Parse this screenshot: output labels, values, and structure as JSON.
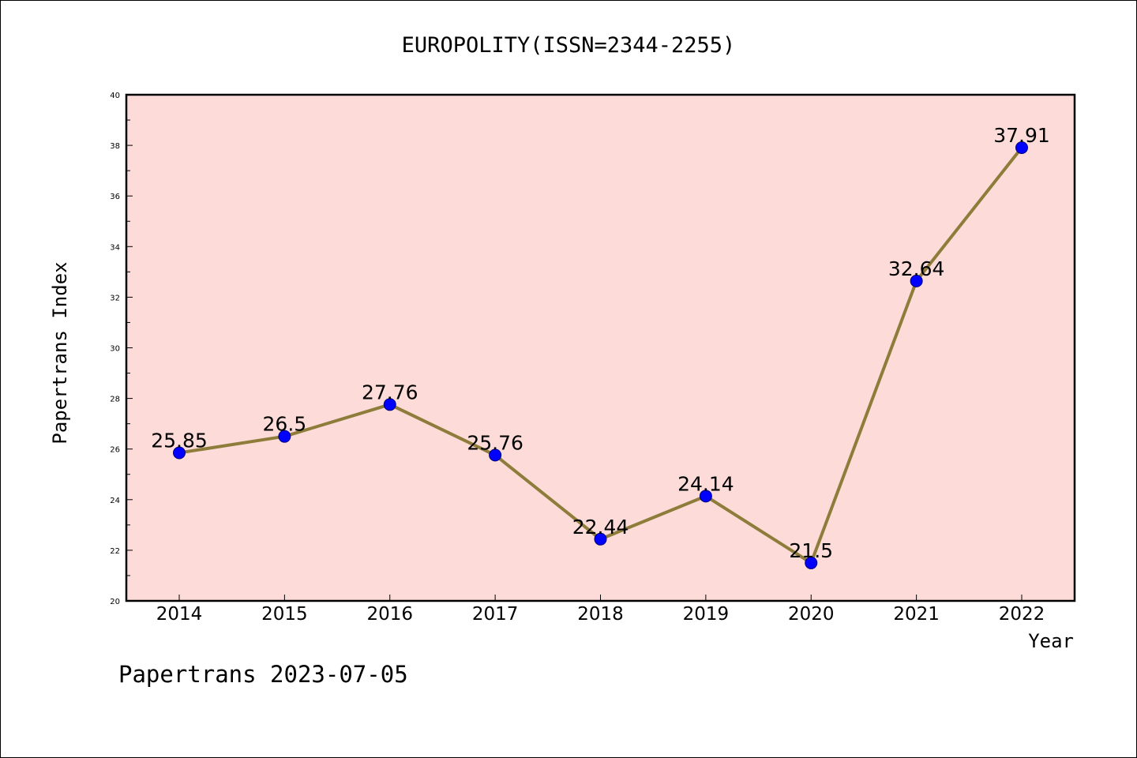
{
  "chart_data": {
    "type": "line",
    "title": "EUROPOLITY(ISSN=2344-2255)",
    "xlabel": "Year",
    "ylabel": "Papertrans Index",
    "categories": [
      "2014",
      "2015",
      "2016",
      "2017",
      "2018",
      "2019",
      "2020",
      "2021",
      "2022"
    ],
    "series": [
      {
        "values": [
          25.85,
          26.5,
          27.76,
          25.76,
          22.44,
          24.14,
          21.5,
          32.64,
          37.91
        ],
        "labels": [
          "25.85",
          "26.5",
          "27.76",
          "25.76",
          "22.44",
          "24.14",
          "21.5",
          "32.64",
          "37.91"
        ]
      }
    ],
    "ylim": [
      20,
      40
    ],
    "yticks": [
      20,
      22,
      24,
      26,
      28,
      30,
      32,
      34,
      36,
      38,
      40
    ],
    "grid": false,
    "colors": {
      "plot_background": "#fddbd9",
      "line": "#8e7d3a",
      "marker": "#0000ff",
      "marker_edge": "#00007a"
    }
  },
  "footer": {
    "text": "Papertrans 2023-07-05"
  }
}
